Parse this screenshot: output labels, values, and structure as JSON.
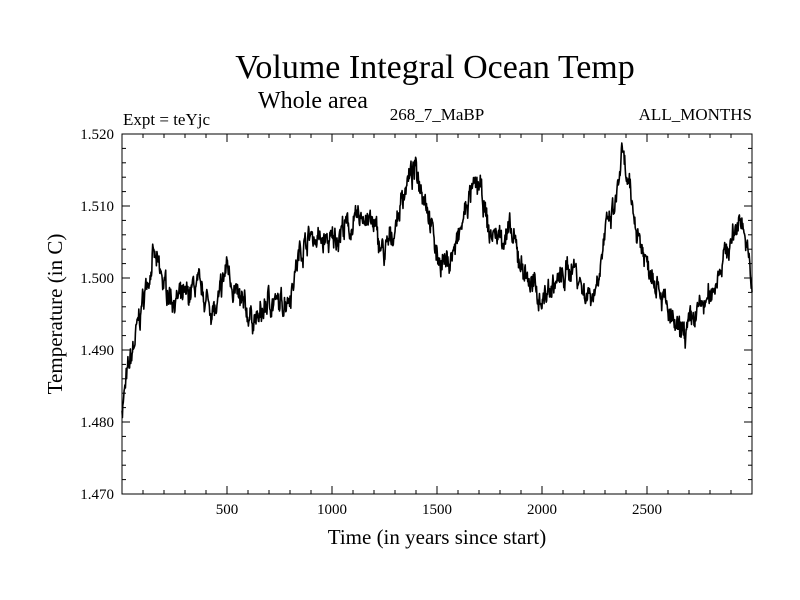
{
  "chart_data": {
    "type": "line",
    "title": "Volume Integral Ocean Temp",
    "subtitle": "Whole area",
    "annotations": {
      "experiment": "Expt = teYjc",
      "run": "268_7_MaBP",
      "period": "ALL_MONTHS"
    },
    "xlabel": "Time (in years since start)",
    "ylabel": "Temperature (in C)",
    "xlim": [
      0,
      3000
    ],
    "ylim": [
      1.47,
      1.52
    ],
    "x_ticks": [
      500,
      1000,
      1500,
      2000,
      2500
    ],
    "x_tick_labels": [
      "500",
      "1000",
      "1500",
      "2000",
      "2500"
    ],
    "y_ticks": [
      1.47,
      1.48,
      1.49,
      1.5,
      1.51,
      1.52
    ],
    "y_tick_labels": [
      "1.470",
      "1.480",
      "1.490",
      "1.500",
      "1.510",
      "1.520"
    ],
    "grid": false,
    "series": [
      {
        "name": "Volume integral ocean temperature",
        "color": "#000000",
        "x": [
          0,
          30,
          60,
          100,
          150,
          200,
          250,
          300,
          350,
          400,
          450,
          500,
          550,
          600,
          650,
          700,
          750,
          800,
          850,
          900,
          950,
          1000,
          1050,
          1100,
          1150,
          1200,
          1250,
          1300,
          1350,
          1400,
          1450,
          1500,
          1550,
          1600,
          1650,
          1700,
          1750,
          1800,
          1850,
          1900,
          1950,
          2000,
          2050,
          2100,
          2150,
          2200,
          2250,
          2300,
          2350,
          2380,
          2400,
          2450,
          2500,
          2550,
          2600,
          2650,
          2700,
          2750,
          2800,
          2850,
          2900,
          2950,
          3000
        ],
        "y": [
          1.482,
          1.487,
          1.491,
          1.497,
          1.503,
          1.499,
          1.497,
          1.497,
          1.499,
          1.497,
          1.495,
          1.502,
          1.497,
          1.495,
          1.494,
          1.497,
          1.496,
          1.498,
          1.504,
          1.506,
          1.505,
          1.505,
          1.507,
          1.507,
          1.509,
          1.507,
          1.503,
          1.507,
          1.513,
          1.515,
          1.511,
          1.503,
          1.502,
          1.505,
          1.511,
          1.513,
          1.506,
          1.506,
          1.506,
          1.502,
          1.499,
          1.497,
          1.499,
          1.5,
          1.502,
          1.498,
          1.498,
          1.506,
          1.51,
          1.517,
          1.514,
          1.507,
          1.502,
          1.5,
          1.495,
          1.492,
          1.493,
          1.496,
          1.497,
          1.502,
          1.505,
          1.509,
          1.499
        ]
      }
    ]
  }
}
